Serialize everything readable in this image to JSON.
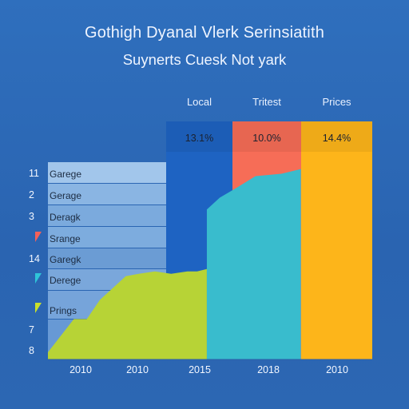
{
  "chart_data": {
    "type": "area",
    "title": "Gothigh Dyanal Vlerk Serinsiatith",
    "subtitle": "Suynerts Cuesk Not yark",
    "column_headers": [
      {
        "label": "Local",
        "value_label": "13.1%",
        "color": "#1e63c2"
      },
      {
        "label": "Tritest",
        "value_label": "10.0%",
        "color": "#f66d57"
      },
      {
        "label": "Prices",
        "value_label": "14.4%",
        "color": "#fdb51a"
      }
    ],
    "rows": [
      {
        "num": "11",
        "label": "Garege",
        "marker": ""
      },
      {
        "num": "2",
        "label": "Gerage",
        "marker": ""
      },
      {
        "num": "3",
        "label": "Deragk",
        "marker": ""
      },
      {
        "num": "",
        "label": "Srange",
        "marker": "triangle",
        "marker_color": "#f2605a"
      },
      {
        "num": "14",
        "label": "Garegk",
        "marker": ""
      },
      {
        "num": "",
        "label": "Derege",
        "marker": "triangle",
        "marker_color": "#2fc4d8"
      },
      {
        "num": "",
        "label": "Prings",
        "marker": "triangle",
        "marker_color": "#c8e02c"
      },
      {
        "num": "7",
        "label": "",
        "marker": ""
      },
      {
        "num": "8",
        "label": "",
        "marker": ""
      }
    ],
    "x_tick_labels": [
      "2010",
      "2010",
      "2015",
      "2018",
      "2010"
    ],
    "series": [
      {
        "color": "#b7d336",
        "x": [
          0,
          8,
          12,
          16,
          24,
          28,
          33,
          38,
          43,
          46,
          49
        ],
        "y": [
          3,
          17,
          17,
          25,
          35,
          36,
          37,
          36,
          37,
          37,
          38
        ]
      },
      {
        "color": "#39bccd",
        "x": [
          49,
          53,
          58,
          64,
          72,
          78
        ],
        "y": [
          63,
          68,
          72,
          77,
          78,
          80
        ]
      }
    ],
    "colors": {
      "background": "#2d6ab8",
      "row_band_light": "#a9cbee",
      "row_band_mid": "#7aa8dc",
      "local_bar": "#1e63c2",
      "tritest_bar": "#f66d57",
      "prices_bar": "#fdb51a"
    }
  }
}
